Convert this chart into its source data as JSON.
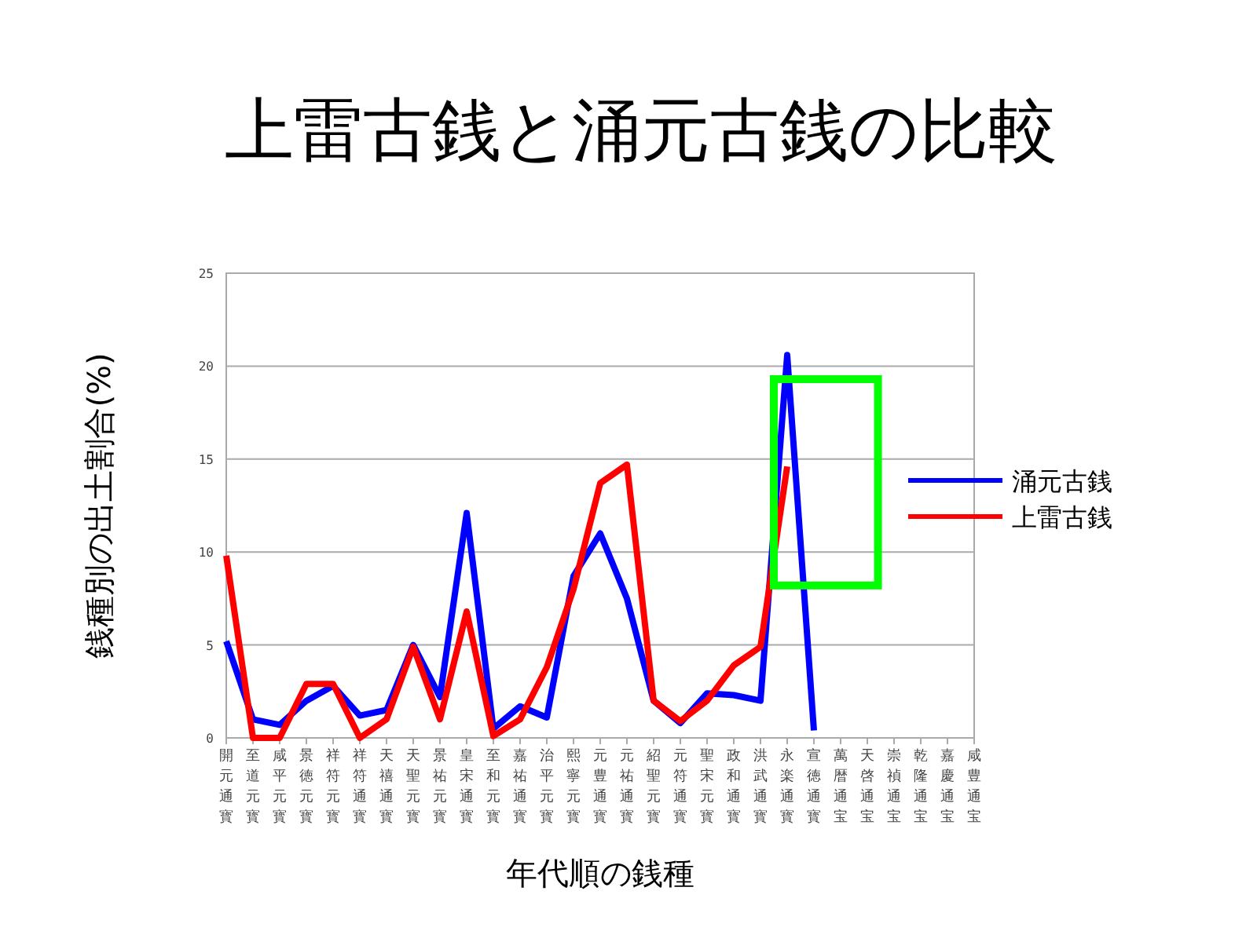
{
  "chart_data": {
    "type": "line",
    "title": "上雷古銭と涌元古銭の比較",
    "xlabel": "年代順の銭種",
    "ylabel": "銭種別の出土割合(%)",
    "categories": [
      "開元通寳",
      "至道元寳",
      "咸平元寳",
      "景徳元寳",
      "祥符元寳",
      "祥符通寳",
      "天禧通寳",
      "天聖元寳",
      "景祐元寳",
      "皇宋通寳",
      "至和元寳",
      "嘉祐通寳",
      "治平元寳",
      "熙寧元寳",
      "元豊通寳",
      "元祐通寳",
      "紹聖元寳",
      "元符通寳",
      "聖宋元寳",
      "政和通寳",
      "洪武通寳",
      "永楽通寳",
      "宣徳通寳",
      "萬暦通宝",
      "天啓通宝",
      "崇禎通宝",
      "乾隆通宝",
      "嘉慶通宝",
      "咸豊通宝"
    ],
    "series": [
      {
        "name": "涌元古銭",
        "color": "#0000ff",
        "values": [
          5.2,
          1.0,
          0.7,
          2.0,
          2.8,
          1.2,
          1.5,
          5.0,
          2.2,
          12.1,
          0.5,
          1.7,
          1.1,
          8.7,
          11.0,
          7.5,
          2.0,
          0.8,
          2.4,
          2.3,
          2.0,
          20.6,
          0.4,
          null,
          null,
          null,
          null,
          null,
          null
        ]
      },
      {
        "name": "上雷古銭",
        "color": "#ff0000",
        "values": [
          9.8,
          0,
          0,
          2.9,
          2.9,
          0,
          1.0,
          4.9,
          1.0,
          6.8,
          0.1,
          1.0,
          3.8,
          8.0,
          13.7,
          14.7,
          2.0,
          0.9,
          2.0,
          3.9,
          4.9,
          14.6,
          null,
          null,
          null,
          null,
          null,
          null,
          null
        ]
      }
    ],
    "ylim": [
      0,
      25
    ],
    "yticks": [
      0,
      5,
      10,
      15,
      20,
      25
    ],
    "grid": "y",
    "legend": "right",
    "marker": "none",
    "line_style": "solid"
  }
}
